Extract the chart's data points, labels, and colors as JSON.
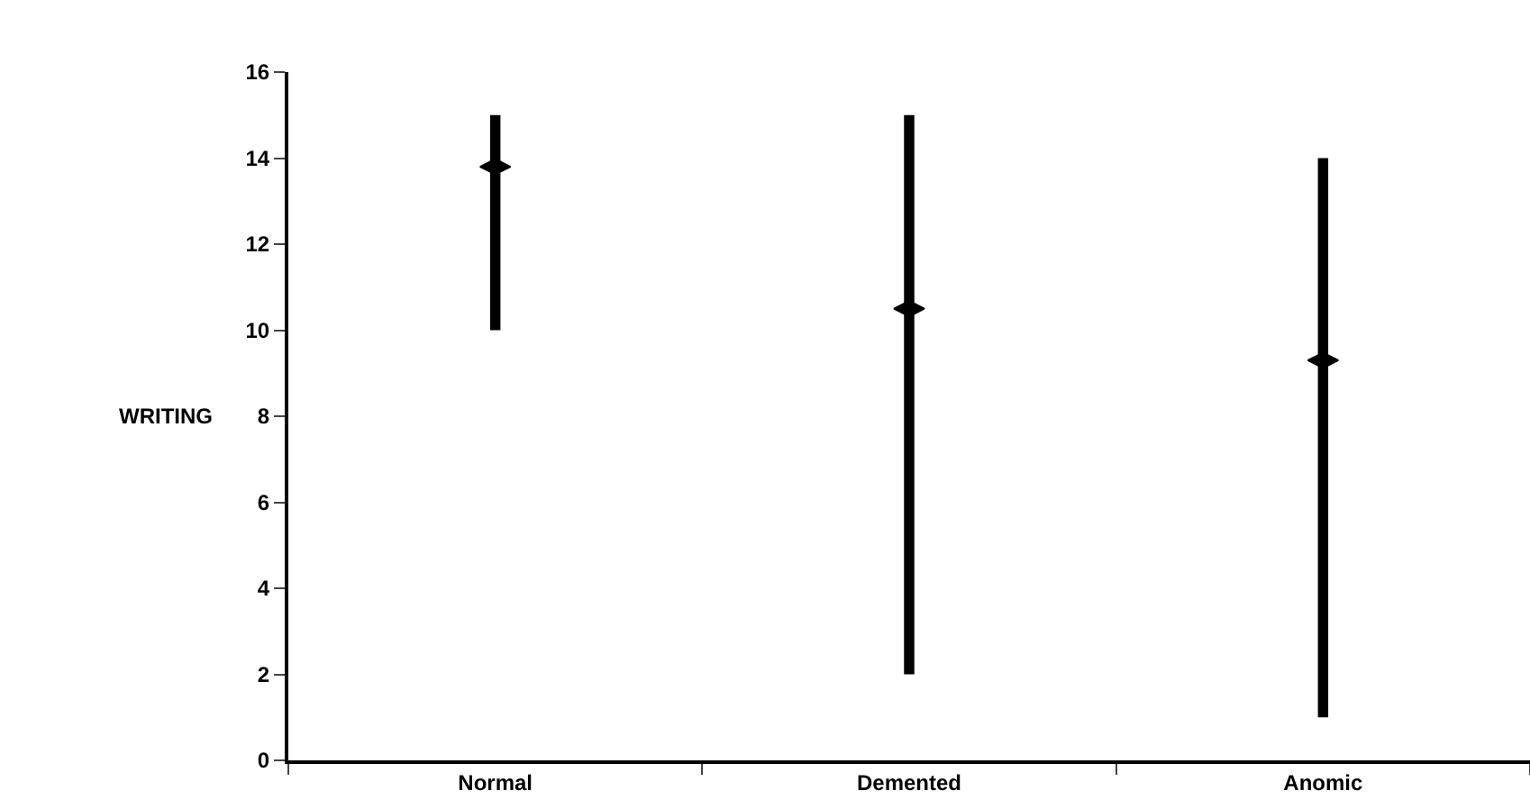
{
  "chart_data": {
    "type": "bar",
    "ylabel": "WRITING",
    "categories": [
      "Normal",
      "Demented",
      "Anomic"
    ],
    "series": [
      {
        "color": "#000000",
        "base": [
          10,
          2,
          1
        ],
        "values": [
          5,
          13,
          13
        ]
      },
      {
        "type": "scatter",
        "color": "#000000",
        "x": [
          "Normal",
          "Demented",
          "Anomic"
        ],
        "values": [
          13.8,
          10.5,
          9.3
        ]
      }
    ],
    "ylim": [
      0,
      16
    ],
    "yticks": [
      0,
      2,
      4,
      6,
      8,
      10,
      12,
      14,
      16
    ]
  }
}
